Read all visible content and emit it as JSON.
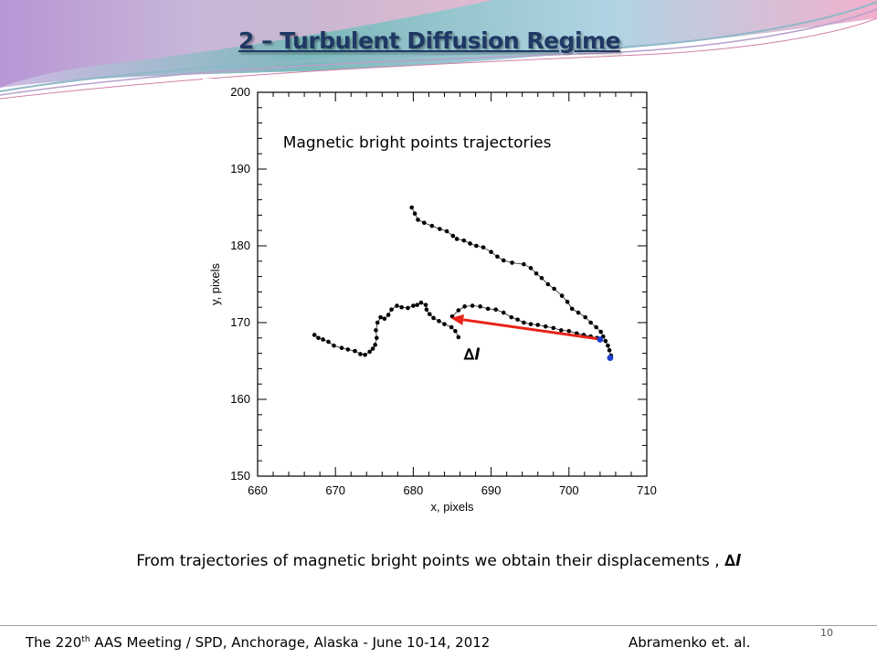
{
  "slide": {
    "title": "2 – Turbulent Diffusion Regime",
    "caption_text": "From trajectories of magnetic bright points we obtain their displacements , ",
    "caption_symbol": "∆l",
    "footer_pre": "The 220",
    "footer_sup": "th",
    "footer_post": " AAS Meeting / SPD, Anchorage, Alaska  -  June 10-14, 2012",
    "author": "Abramenko  et. al.",
    "slide_number": "10"
  },
  "chart_data": {
    "type": "scatter",
    "title": "Magnetic bright points trajectories",
    "xlabel": "x, pixels",
    "ylabel": "y, pixels",
    "xlim": [
      660,
      710
    ],
    "ylim": [
      150,
      200
    ],
    "xticks": [
      660,
      670,
      680,
      690,
      700,
      710
    ],
    "yticks": [
      150,
      160,
      170,
      180,
      190,
      200
    ],
    "grid": false,
    "series": [
      {
        "points": [
          [
            679.8,
            185.0
          ],
          [
            680.2,
            184.2
          ],
          [
            680.6,
            183.4
          ],
          [
            681.4,
            183.0
          ],
          [
            682.4,
            182.6
          ],
          [
            683.4,
            182.2
          ],
          [
            684.3,
            181.9
          ],
          [
            685.1,
            181.3
          ],
          [
            685.6,
            180.9
          ],
          [
            686.5,
            180.7
          ],
          [
            687.3,
            180.3
          ],
          [
            688.1,
            180.0
          ],
          [
            689.0,
            179.8
          ],
          [
            690.0,
            179.2
          ],
          [
            690.8,
            178.6
          ],
          [
            691.6,
            178.1
          ],
          [
            692.7,
            177.8
          ],
          [
            694.2,
            177.6
          ],
          [
            695.1,
            177.1
          ],
          [
            695.8,
            176.4
          ],
          [
            696.5,
            175.8
          ],
          [
            697.3,
            175.0
          ],
          [
            698.1,
            174.4
          ],
          [
            699.1,
            173.5
          ],
          [
            699.8,
            172.7
          ],
          [
            700.4,
            171.8
          ],
          [
            701.2,
            171.3
          ],
          [
            702.1,
            170.7
          ],
          [
            702.8,
            170.0
          ],
          [
            703.5,
            169.4
          ],
          [
            704.1,
            168.8
          ],
          [
            704.4,
            168.2
          ],
          [
            704.7,
            167.6
          ],
          [
            705.0,
            167.0
          ],
          [
            705.2,
            166.4
          ],
          [
            705.4,
            165.7
          ]
        ]
      },
      {
        "points": [
          [
            685.8,
            168.1
          ],
          [
            685.4,
            168.9
          ],
          [
            684.9,
            169.4
          ],
          [
            684.0,
            169.8
          ],
          [
            683.3,
            170.2
          ],
          [
            682.6,
            170.6
          ],
          [
            682.1,
            171.1
          ],
          [
            681.7,
            171.7
          ],
          [
            681.6,
            172.3
          ],
          [
            681.0,
            172.6
          ],
          [
            680.5,
            172.3
          ],
          [
            680.0,
            172.2
          ],
          [
            679.3,
            171.9
          ],
          [
            678.5,
            172.0
          ],
          [
            677.9,
            172.2
          ],
          [
            677.2,
            171.7
          ],
          [
            676.8,
            171.0
          ],
          [
            676.3,
            170.5
          ],
          [
            675.8,
            170.7
          ],
          [
            675.4,
            170.0
          ],
          [
            675.2,
            169.0
          ],
          [
            675.3,
            168.0
          ],
          [
            675.1,
            167.1
          ],
          [
            674.8,
            166.6
          ],
          [
            674.4,
            166.2
          ],
          [
            673.8,
            165.8
          ],
          [
            673.2,
            165.9
          ],
          [
            672.5,
            166.3
          ],
          [
            671.6,
            166.5
          ],
          [
            670.8,
            166.7
          ],
          [
            669.8,
            167.0
          ],
          [
            669.1,
            167.5
          ],
          [
            668.4,
            167.8
          ],
          [
            667.8,
            168.0
          ],
          [
            667.3,
            168.4
          ]
        ]
      },
      {
        "points": [
          [
            685.0,
            170.8
          ],
          [
            685.8,
            171.6
          ],
          [
            686.6,
            172.1
          ],
          [
            687.6,
            172.2
          ],
          [
            688.6,
            172.1
          ],
          [
            689.6,
            171.8
          ],
          [
            690.6,
            171.7
          ],
          [
            691.6,
            171.3
          ],
          [
            692.6,
            170.7
          ],
          [
            693.4,
            170.4
          ],
          [
            694.2,
            170.0
          ],
          [
            695.1,
            169.8
          ],
          [
            696.0,
            169.7
          ],
          [
            697.0,
            169.5
          ],
          [
            698.0,
            169.3
          ],
          [
            699.0,
            169.0
          ],
          [
            700.0,
            168.9
          ],
          [
            701.0,
            168.6
          ],
          [
            701.9,
            168.4
          ],
          [
            702.8,
            168.2
          ],
          [
            703.6,
            168.0
          ]
        ]
      }
    ],
    "markers": {
      "start": [
        705.3,
        165.4
      ],
      "end": [
        704.0,
        167.8
      ],
      "color": "#1f3fd0"
    },
    "displacement": {
      "from": [
        703.6,
        167.9
      ],
      "to": [
        684.8,
        170.6
      ],
      "color": "#e8231a",
      "label": "∆l",
      "label_at": [
        687.5,
        165.2
      ]
    },
    "title_at": [
      680.5,
      192.8
    ]
  }
}
